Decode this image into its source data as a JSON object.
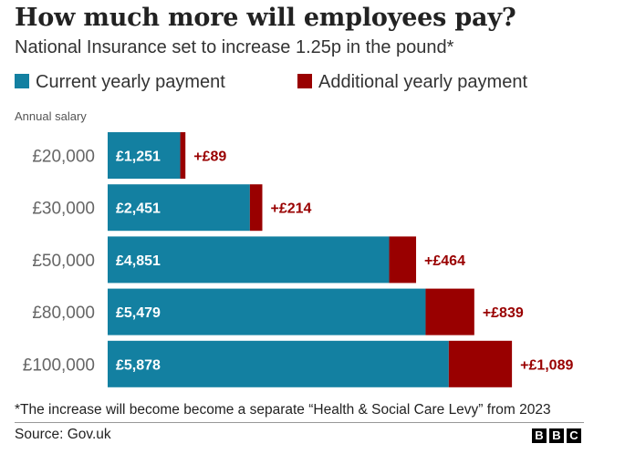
{
  "header": {
    "title": "How much more will employees pay?",
    "subtitle": "National Insurance set to increase 1.25p in the pound*"
  },
  "legend": {
    "items": [
      {
        "label": "Current yearly payment",
        "color": "#1380A1"
      },
      {
        "label": "Additional yearly payment",
        "color": "#990000"
      }
    ]
  },
  "axis": {
    "title": "Annual salary"
  },
  "chart_data": {
    "type": "bar",
    "orientation": "horizontal",
    "stacked": true,
    "categories": [
      "£20,000",
      "£30,000",
      "£50,000",
      "£80,000",
      "£100,000"
    ],
    "series": [
      {
        "name": "Current yearly payment",
        "values": [
          1251,
          2451,
          4851,
          5479,
          5878
        ],
        "labels": [
          "£1,251",
          "£2,451",
          "£4,851",
          "£5,479",
          "£5,878"
        ],
        "color": "#1380A1"
      },
      {
        "name": "Additional yearly payment",
        "values": [
          89,
          214,
          464,
          839,
          1089
        ],
        "labels": [
          "+£89",
          "+£214",
          "+£464",
          "+£839",
          "+£1,089"
        ],
        "color": "#990000"
      }
    ],
    "ylabel": "Annual salary",
    "grid": false,
    "legend_position": "top-left"
  },
  "footer": {
    "note": "*The increase will become become a separate “Health & Social Care Levy” from 2023",
    "source": "Source: Gov.uk",
    "logo_letters": [
      "B",
      "B",
      "C"
    ]
  }
}
